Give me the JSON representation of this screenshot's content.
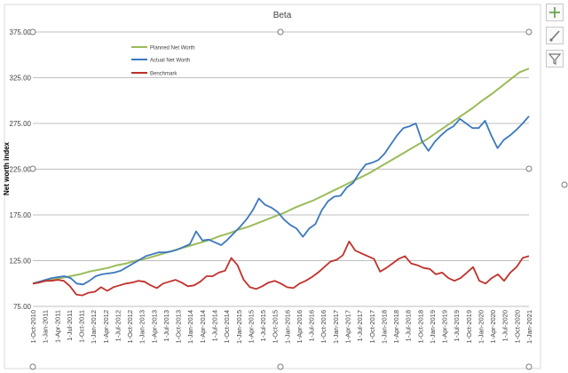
{
  "chart_data": {
    "type": "line",
    "title": "Beta",
    "ylabel": "Net worth index",
    "xlabel": "",
    "ylim": [
      75,
      375
    ],
    "yticks": [
      "375.00",
      "325.00",
      "275.00",
      "225.00",
      "175.00",
      "125.00",
      "75.00"
    ],
    "ytick_values": [
      375,
      325,
      275,
      225,
      175,
      125,
      75
    ],
    "grid": true,
    "legend_position": "top-left",
    "x_tick_labels": [
      "1-Oct-2010",
      "1-Jan-2011",
      "1-Apr-2011",
      "1-Jul-2011",
      "1-Oct-2011",
      "1-Jan-2012",
      "1-Apr-2012",
      "1-Jul-2012",
      "1-Oct-2012",
      "1-Jan-2013",
      "1-Apr-2013",
      "1-Jul-2013",
      "1-Oct-2013",
      "1-Jan-2014",
      "1-Apr-2014",
      "1-Jul-2014",
      "1-Oct-2014",
      "1-Jan-2015",
      "1-Apr-2015",
      "1-Jul-2015",
      "1-Oct-2015",
      "1-Jan-2016",
      "1-Apr-2016",
      "1-Jul-2016",
      "1-Oct-2016",
      "1-Jan-2017",
      "1-Apr-2017",
      "1-Jul-2017",
      "1-Oct-2017",
      "1-Jan-2018",
      "1-Apr-2018",
      "1-Jul-2018",
      "1-Oct-2018",
      "1-Jan-2019",
      "1-Apr-2019",
      "1-Jul-2019",
      "1-Oct-2019",
      "1-Jan-2020",
      "1-Apr-2020",
      "1-Jul-2020",
      "1-Oct-2020",
      "1-Jan-2021"
    ],
    "series": [
      {
        "name": "Planned Net Worth",
        "color": "#9BBB59",
        "values": [
          100,
          102,
          104,
          106,
          108,
          110,
          113,
          115,
          117,
          120,
          122,
          125,
          127,
          130,
          133,
          136,
          139,
          142,
          145,
          148,
          152,
          155,
          159,
          162,
          166,
          170,
          174,
          178,
          183,
          187,
          191,
          196,
          201,
          206,
          211,
          216,
          221,
          227,
          233,
          239,
          245,
          251,
          257,
          264,
          271,
          278,
          285,
          292,
          300,
          307,
          315,
          323,
          331,
          335
        ]
      },
      {
        "name": "Actual Net Worth",
        "color": "#3C78BE",
        "values": [
          100,
          102,
          104,
          106,
          107,
          108,
          106,
          100,
          99,
          103,
          108,
          110,
          111,
          112,
          114,
          118,
          122,
          126,
          130,
          132,
          134,
          134,
          135,
          137,
          140,
          143,
          157,
          147,
          148,
          145,
          142,
          148,
          155,
          162,
          170,
          180,
          193,
          186,
          183,
          178,
          170,
          164,
          160,
          151,
          160,
          165,
          180,
          190,
          195,
          196,
          205,
          210,
          221,
          230,
          232,
          235,
          242,
          252,
          262,
          270,
          272,
          275,
          255,
          245,
          255,
          262,
          268,
          272,
          280,
          275,
          270,
          270,
          278,
          262,
          248,
          257,
          262,
          268,
          275,
          283
        ]
      },
      {
        "name": "Benchmark",
        "color": "#C0312C",
        "values": [
          100,
          101,
          103,
          103,
          104,
          103,
          97,
          88,
          87,
          90,
          91,
          96,
          92,
          96,
          98,
          100,
          101,
          103,
          102,
          98,
          95,
          100,
          102,
          104,
          101,
          97,
          98,
          102,
          108,
          108,
          112,
          114,
          128,
          120,
          104,
          96,
          94,
          97,
          101,
          103,
          100,
          96,
          95,
          100,
          103,
          107,
          112,
          118,
          124,
          126,
          131,
          146,
          136,
          133,
          130,
          127,
          113,
          117,
          122,
          127,
          130,
          122,
          120,
          117,
          116,
          110,
          112,
          106,
          103,
          106,
          112,
          118,
          103,
          100,
          106,
          110,
          103,
          112,
          118,
          128,
          130
        ]
      }
    ]
  },
  "toolbar": {
    "buttons": [
      {
        "icon": "plus-icon"
      },
      {
        "icon": "brush-icon"
      },
      {
        "icon": "filter-icon"
      }
    ]
  }
}
